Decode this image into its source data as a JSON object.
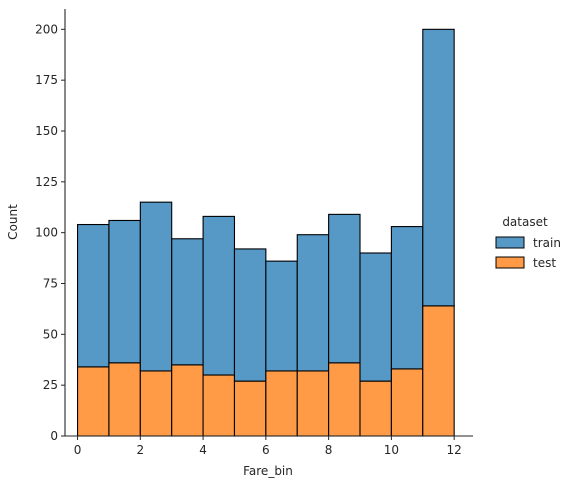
{
  "chart_data": {
    "type": "bar",
    "stacked": true,
    "xlabel": "Fare_bin",
    "ylabel": "Count",
    "xlim": [
      -0.4,
      12.6
    ],
    "ylim": [
      0,
      210
    ],
    "bin_edges": [
      0,
      1,
      2,
      3,
      4,
      5,
      6,
      7,
      8,
      9,
      10,
      11,
      12
    ],
    "xticks": [
      0,
      2,
      4,
      6,
      8,
      10,
      12
    ],
    "yticks": [
      0,
      25,
      50,
      75,
      100,
      125,
      150,
      175,
      200
    ],
    "legend": {
      "title": "dataset",
      "placement": "right"
    },
    "series": [
      {
        "name": "test",
        "color": "#ff9a46",
        "values": [
          34,
          36,
          32,
          35,
          30,
          27,
          32,
          32,
          36,
          27,
          33,
          64
        ]
      },
      {
        "name": "train",
        "color": "#5698c6",
        "values": [
          70,
          70,
          83,
          62,
          78,
          65,
          54,
          67,
          73,
          63,
          70,
          136
        ]
      }
    ],
    "legend_order": [
      "train",
      "test"
    ]
  }
}
